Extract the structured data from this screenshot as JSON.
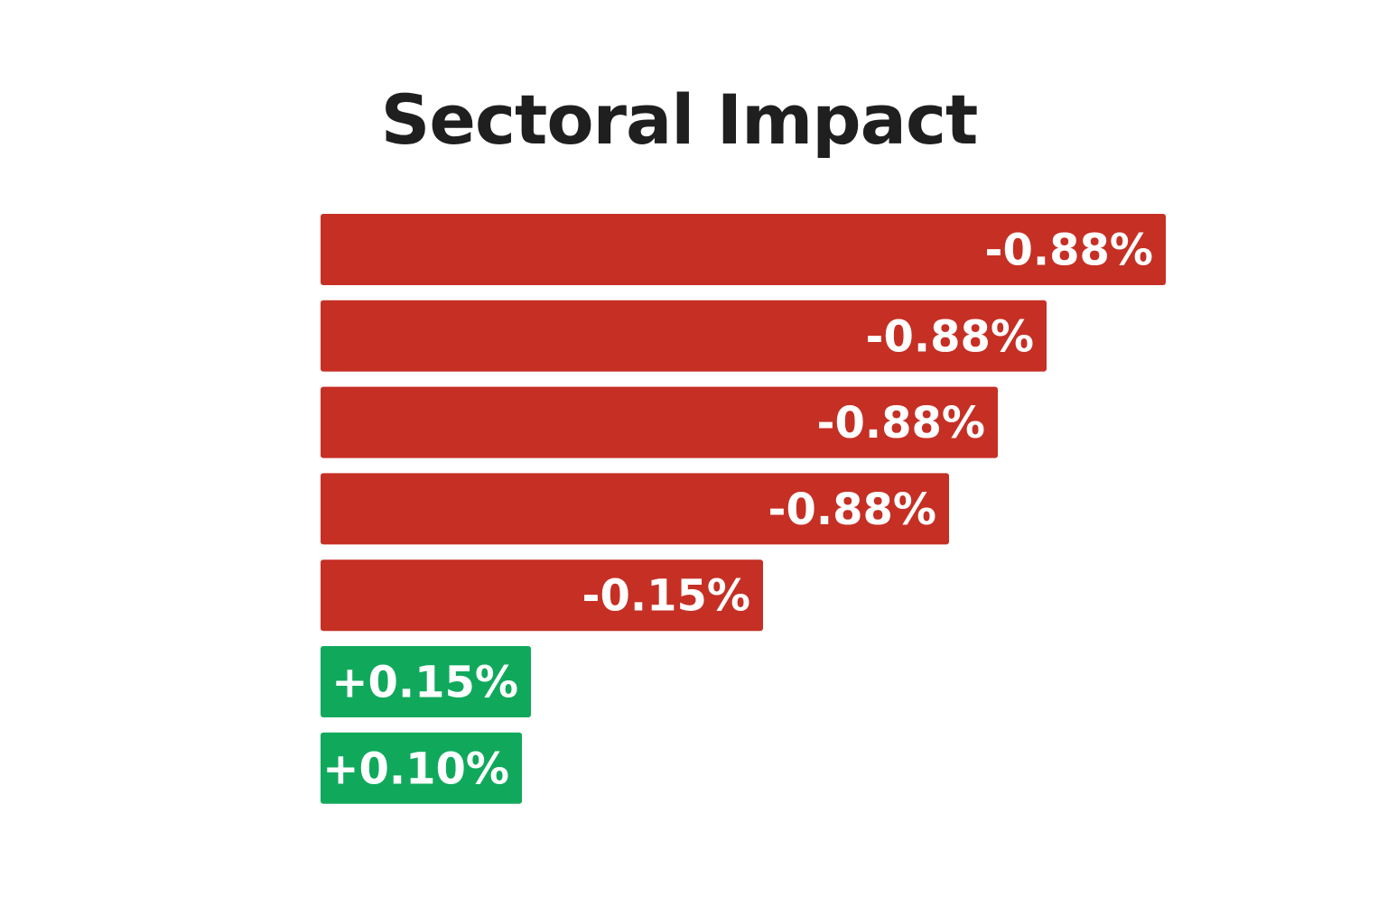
{
  "chart_data": {
    "type": "bar",
    "orientation": "horizontal",
    "title": "Sectoral Impact",
    "series": [
      {
        "values": [
          -0.88,
          -0.88,
          -0.88,
          -0.88,
          -0.15,
          0.15,
          0.1
        ],
        "labels": [
          "-0.88%",
          "-0.88%",
          "-0.88%",
          "-0.88%",
          "-0.15%",
          "+0.15%",
          "+0.10%"
        ]
      }
    ],
    "colors": {
      "negative": "#c62f24",
      "positive": "#10a95c"
    },
    "grid": false,
    "legend": "none"
  }
}
